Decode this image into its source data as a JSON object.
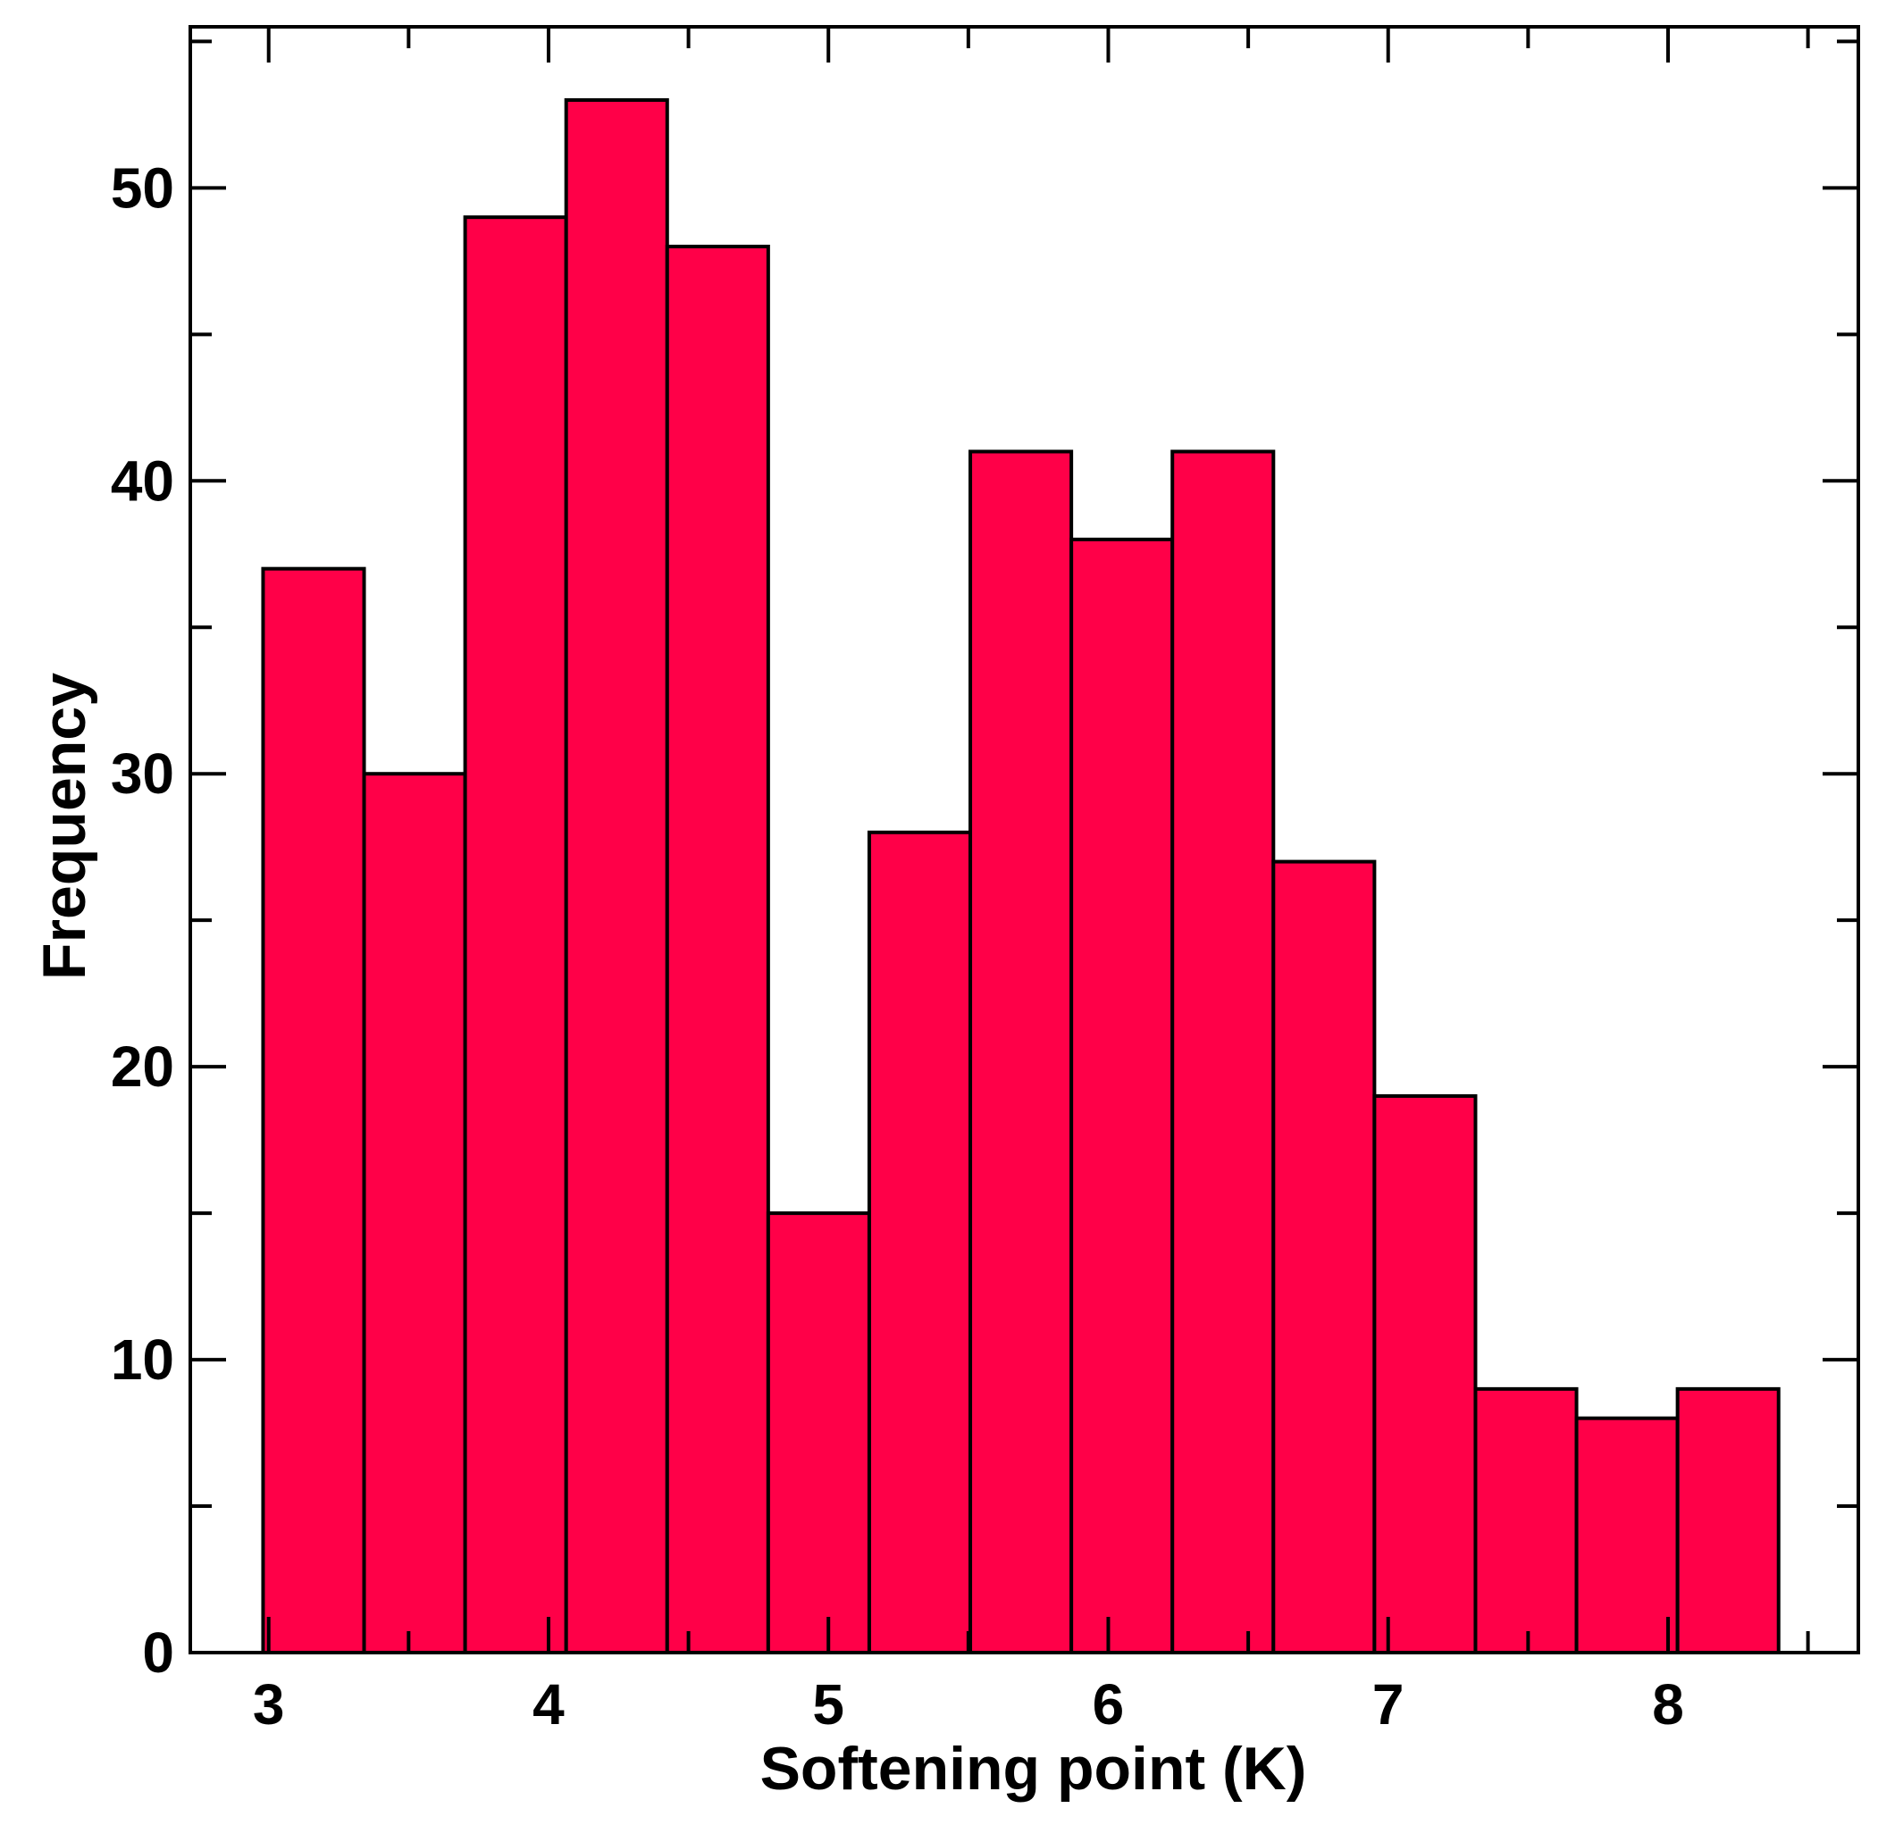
{
  "chart_data": {
    "type": "bar",
    "subtype": "histogram",
    "xlabel": "Softening point (K)",
    "ylabel": "Frequency",
    "xlim": [
      2.72,
      8.68
    ],
    "ylim": [
      0,
      55.5
    ],
    "x_ticks": [
      3,
      4,
      5,
      6,
      7,
      8
    ],
    "y_ticks": [
      0,
      10,
      20,
      30,
      40,
      50
    ],
    "y_minor_step": 5,
    "x_minor_step": 0.5,
    "bin_edges": [
      2.98,
      3.341,
      3.702,
      4.063,
      4.424,
      4.785,
      5.146,
      5.507,
      5.868,
      6.229,
      6.59,
      6.951,
      7.312,
      7.673,
      8.034,
      8.395
    ],
    "values": [
      37,
      30,
      49,
      53,
      48,
      15,
      28,
      41,
      38,
      41,
      27,
      19,
      9,
      8,
      9
    ],
    "bar_color": "#FF0048",
    "edge_color": "#000000"
  }
}
